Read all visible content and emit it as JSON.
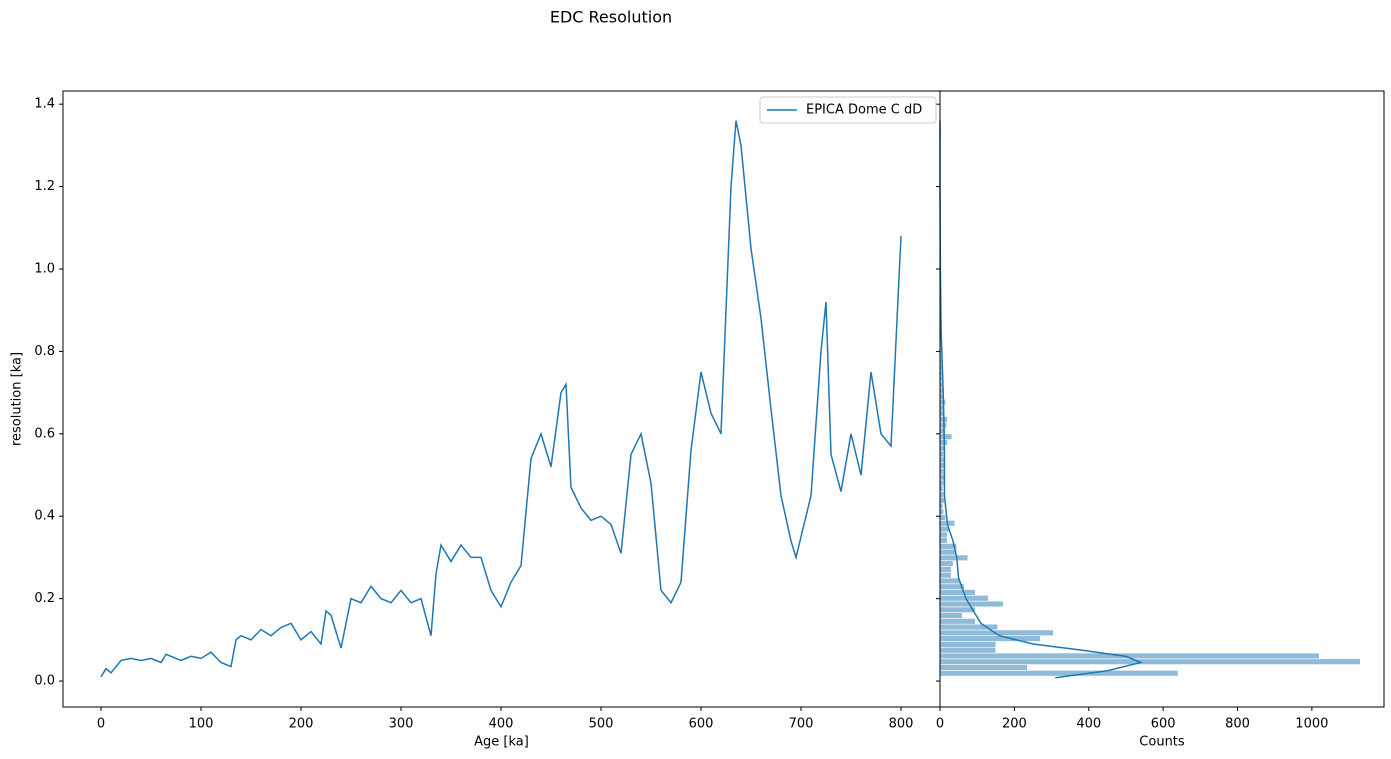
{
  "title": "EDC Resolution",
  "chart_data": [
    {
      "type": "line",
      "xlabel": "Age [ka]",
      "ylabel": "resolution [ka]",
      "xlim": [
        -38,
        839
      ],
      "xticks": [
        0,
        100,
        200,
        300,
        400,
        500,
        600,
        700,
        800
      ],
      "ylim": [
        -0.063,
        1.432
      ],
      "yticks": [
        {
          "value": 0,
          "label": "0.0"
        },
        0.2,
        0.4,
        0.6,
        0.8,
        {
          "value": 1,
          "label": "1.0"
        },
        1.2,
        1.4
      ],
      "legend": "upper right",
      "series": [
        {
          "name": "EPICA Dome C dD",
          "color": "#1f77b4",
          "x": [
            0,
            5,
            10,
            20,
            30,
            40,
            50,
            60,
            65,
            80,
            90,
            100,
            110,
            120,
            130,
            135,
            140,
            150,
            160,
            170,
            180,
            190,
            200,
            210,
            220,
            225,
            230,
            240,
            245,
            250,
            260,
            270,
            280,
            290,
            300,
            310,
            320,
            330,
            335,
            340,
            350,
            360,
            370,
            380,
            390,
            400,
            410,
            420,
            430,
            440,
            450,
            460,
            465,
            470,
            480,
            490,
            500,
            510,
            520,
            530,
            540,
            550,
            560,
            570,
            580,
            590,
            600,
            610,
            620,
            630,
            635,
            640,
            650,
            660,
            670,
            680,
            690,
            695,
            710,
            720,
            725,
            730,
            740,
            750,
            760,
            770,
            780,
            790,
            800
          ],
          "values": [
            0.01,
            0.03,
            0.02,
            0.05,
            0.055,
            0.05,
            0.055,
            0.045,
            0.065,
            0.05,
            0.06,
            0.055,
            0.07,
            0.045,
            0.035,
            0.1,
            0.11,
            0.1,
            0.125,
            0.11,
            0.13,
            0.14,
            0.1,
            0.12,
            0.09,
            0.17,
            0.16,
            0.08,
            0.14,
            0.2,
            0.19,
            0.23,
            0.2,
            0.19,
            0.22,
            0.19,
            0.2,
            0.11,
            0.26,
            0.33,
            0.29,
            0.33,
            0.3,
            0.3,
            0.22,
            0.18,
            0.24,
            0.28,
            0.54,
            0.6,
            0.52,
            0.7,
            0.72,
            0.47,
            0.42,
            0.39,
            0.4,
            0.38,
            0.31,
            0.55,
            0.6,
            0.48,
            0.22,
            0.19,
            0.24,
            0.56,
            0.75,
            0.65,
            0.6,
            1.2,
            1.36,
            1.3,
            1.05,
            0.88,
            0.66,
            0.45,
            0.34,
            0.3,
            0.45,
            0.8,
            0.92,
            0.55,
            0.46,
            0.6,
            0.5,
            0.75,
            0.6,
            0.57,
            1.08
          ]
        }
      ]
    },
    {
      "type": "hist-horizontal",
      "xlabel": "Counts",
      "xlim": [
        0,
        1194
      ],
      "xticks": [
        0,
        200,
        400,
        600,
        800,
        1000
      ],
      "ylim": [
        -0.063,
        1.432
      ],
      "color": "#1f77b4",
      "alpha": 0.5,
      "bins": [
        0.012,
        0.026,
        0.04,
        0.054,
        0.068,
        0.082,
        0.096,
        0.11,
        0.124,
        0.138,
        0.152,
        0.166,
        0.18,
        0.194,
        0.208,
        0.222,
        0.236,
        0.25,
        0.264,
        0.278,
        0.292,
        0.306,
        0.32,
        0.334,
        0.348,
        0.362,
        0.376,
        0.39,
        0.404,
        0.418,
        0.432,
        0.446,
        0.46,
        0.474,
        0.488,
        0.502,
        0.516,
        0.53,
        0.544,
        0.558,
        0.572,
        0.586,
        0.6,
        0.614,
        0.628,
        0.642,
        0.656,
        0.67,
        0.684,
        0.698,
        0.712,
        0.726,
        0.74,
        0.754,
        0.768,
        0.782,
        0.796,
        0.81,
        0.824,
        0.838,
        0.852,
        0.866,
        0.88,
        0.894,
        0.908,
        0.922,
        0.936,
        0.95,
        0.964,
        0.978,
        0.992,
        1.006,
        1.02,
        1.034,
        1.048,
        1.062,
        1.076,
        1.09,
        1.104,
        1.118,
        1.132,
        1.146,
        1.16,
        1.174,
        1.188,
        1.202,
        1.216,
        1.23,
        1.244,
        1.258,
        1.272,
        1.286,
        1.3,
        1.314,
        1.328,
        1.342,
        1.356
      ],
      "counts": [
        640,
        235,
        1130,
        1020,
        150,
        150,
        270,
        305,
        155,
        95,
        60,
        95,
        170,
        130,
        95,
        65,
        55,
        30,
        30,
        35,
        75,
        45,
        45,
        20,
        20,
        25,
        40,
        15,
        10,
        8,
        12,
        10,
        8,
        10,
        12,
        10,
        15,
        12,
        10,
        12,
        20,
        32,
        15,
        18,
        20,
        12,
        10,
        15,
        10,
        8,
        8,
        6,
        6,
        5,
        5,
        4,
        4,
        3,
        3,
        3,
        3,
        2,
        2,
        2,
        2,
        2,
        2,
        2,
        2,
        2,
        2,
        2,
        1,
        1,
        1,
        1,
        1,
        1,
        1,
        1,
        1,
        1,
        1,
        1,
        1,
        1,
        1,
        1,
        1,
        1,
        1,
        1,
        2,
        3,
        3,
        2
      ],
      "kde": {
        "values": [
          310,
          450,
          540,
          500,
          380,
          250,
          160,
          110,
          90,
          70,
          50,
          45,
          35,
          20,
          12,
          12,
          10,
          8,
          3,
          1,
          0,
          0
        ],
        "y": [
          0.008,
          0.025,
          0.045,
          0.06,
          0.075,
          0.09,
          0.11,
          0.14,
          0.17,
          0.2,
          0.25,
          0.3,
          0.34,
          0.38,
          0.45,
          0.55,
          0.65,
          0.72,
          0.85,
          1.0,
          1.2,
          1.36
        ]
      }
    }
  ]
}
